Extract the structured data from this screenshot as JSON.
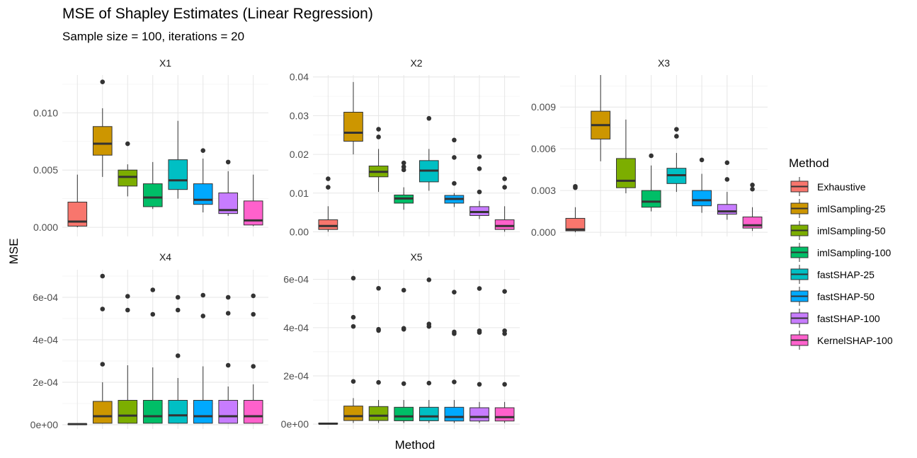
{
  "title": "MSE of Shapley Estimates (Linear Regression)",
  "subtitle": "Sample size = 100, iterations = 20",
  "xlabel": "Method",
  "ylabel": "MSE",
  "legend": {
    "title": "Method",
    "items": [
      {
        "label": "Exhaustive",
        "color": "#F8766D"
      },
      {
        "label": "imlSampling-25",
        "color": "#CD9600"
      },
      {
        "label": "imlSampling-50",
        "color": "#7CAE00"
      },
      {
        "label": "imlSampling-100",
        "color": "#00BE67"
      },
      {
        "label": "fastSHAP-25",
        "color": "#00BFC4"
      },
      {
        "label": "fastSHAP-50",
        "color": "#00A9FF"
      },
      {
        "label": "fastSHAP-100",
        "color": "#C77CFF"
      },
      {
        "label": "KernelSHAP-100",
        "color": "#FF61CC"
      }
    ]
  },
  "chart_data": {
    "type": "boxplot",
    "legend_position": "right",
    "grid": true,
    "categories": [
      "Exhaustive",
      "imlSampling-25",
      "imlSampling-50",
      "imlSampling-100",
      "fastSHAP-25",
      "fastSHAP-50",
      "fastSHAP-100",
      "KernelSHAP-100"
    ],
    "panels": [
      {
        "name": "X1",
        "ylim": [
          -0.0008,
          0.0133
        ],
        "ticks": [
          0,
          0.005,
          0.01
        ],
        "tick_labels": [
          "0.000",
          "0.005",
          "0.010"
        ],
        "boxes": [
          {
            "min": 0.0,
            "q1": 0.0001,
            "median": 0.0005,
            "q3": 0.0022,
            "max": 0.0046,
            "outliers": []
          },
          {
            "min": 0.0044,
            "q1": 0.0063,
            "median": 0.0073,
            "q3": 0.0088,
            "max": 0.0104,
            "outliers": [
              0.0127
            ]
          },
          {
            "min": 0.0027,
            "q1": 0.0036,
            "median": 0.0044,
            "q3": 0.005,
            "max": 0.0055,
            "outliers": [
              0.0073
            ]
          },
          {
            "min": 0.0016,
            "q1": 0.0018,
            "median": 0.0026,
            "q3": 0.0038,
            "max": 0.0057,
            "outliers": []
          },
          {
            "min": 0.0025,
            "q1": 0.0033,
            "median": 0.0041,
            "q3": 0.0059,
            "max": 0.0093,
            "outliers": []
          },
          {
            "min": 0.0013,
            "q1": 0.002,
            "median": 0.0024,
            "q3": 0.0038,
            "max": 0.006,
            "outliers": [
              0.0067
            ]
          },
          {
            "min": 0.001,
            "q1": 0.0012,
            "median": 0.0015,
            "q3": 0.003,
            "max": 0.0049,
            "outliers": [
              0.0057
            ]
          },
          {
            "min": 0.0001,
            "q1": 0.0002,
            "median": 0.0006,
            "q3": 0.0023,
            "max": 0.0046,
            "outliers": []
          }
        ]
      },
      {
        "name": "X2",
        "ylim": [
          -0.0012,
          0.0405
        ],
        "ticks": [
          0,
          0.01,
          0.02,
          0.03,
          0.04
        ],
        "tick_labels": [
          "0.00",
          "0.01",
          "0.02",
          "0.03",
          "0.04"
        ],
        "boxes": [
          {
            "min": 0.0,
            "q1": 0.0006,
            "median": 0.0015,
            "q3": 0.0031,
            "max": 0.0066,
            "outliers": [
              0.0115,
              0.0137
            ]
          },
          {
            "min": 0.02,
            "q1": 0.0234,
            "median": 0.0256,
            "q3": 0.0309,
            "max": 0.0387,
            "outliers": []
          },
          {
            "min": 0.0103,
            "q1": 0.0142,
            "median": 0.0155,
            "q3": 0.017,
            "max": 0.0214,
            "outliers": [
              0.0245,
              0.0265
            ]
          },
          {
            "min": 0.0057,
            "q1": 0.0074,
            "median": 0.0086,
            "q3": 0.0095,
            "max": 0.0115,
            "outliers": [
              0.016,
              0.0168,
              0.0178
            ]
          },
          {
            "min": 0.0106,
            "q1": 0.0129,
            "median": 0.0158,
            "q3": 0.0184,
            "max": 0.0214,
            "outliers": [
              0.0293
            ]
          },
          {
            "min": 0.0064,
            "q1": 0.0074,
            "median": 0.0085,
            "q3": 0.0094,
            "max": 0.01,
            "outliers": [
              0.0125,
              0.0192,
              0.0237
            ]
          },
          {
            "min": 0.0033,
            "q1": 0.0042,
            "median": 0.0051,
            "q3": 0.0065,
            "max": 0.008,
            "outliers": [
              0.0103,
              0.0163,
              0.0194
            ]
          },
          {
            "min": 0.0,
            "q1": 0.0006,
            "median": 0.0015,
            "q3": 0.0031,
            "max": 0.0066,
            "outliers": [
              0.0115,
              0.0137
            ]
          }
        ]
      },
      {
        "name": "X3",
        "ylim": [
          -0.0003,
          0.0113
        ],
        "ticks": [
          0,
          0.003,
          0.006,
          0.009
        ],
        "tick_labels": [
          "0.000",
          "0.003",
          "0.006",
          "0.009"
        ],
        "boxes": [
          {
            "min": 0.0,
            "q1": 0.0001,
            "median": 0.0002,
            "q3": 0.001,
            "max": 0.0018,
            "outliers": [
              0.0032,
              0.0033
            ]
          },
          {
            "min": 0.0051,
            "q1": 0.0067,
            "median": 0.0077,
            "q3": 0.0087,
            "max": 0.0113,
            "outliers": []
          },
          {
            "min": 0.0028,
            "q1": 0.0032,
            "median": 0.0037,
            "q3": 0.0053,
            "max": 0.0081,
            "outliers": []
          },
          {
            "min": 0.0015,
            "q1": 0.0018,
            "median": 0.0022,
            "q3": 0.003,
            "max": 0.0048,
            "outliers": [
              0.0055
            ]
          },
          {
            "min": 0.0029,
            "q1": 0.0035,
            "median": 0.0041,
            "q3": 0.0046,
            "max": 0.0057,
            "outliers": [
              0.0069,
              0.0074
            ]
          },
          {
            "min": 0.0014,
            "q1": 0.0019,
            "median": 0.0023,
            "q3": 0.003,
            "max": 0.0042,
            "outliers": [
              0.0052
            ]
          },
          {
            "min": 0.0009,
            "q1": 0.0013,
            "median": 0.0015,
            "q3": 0.002,
            "max": 0.0029,
            "outliers": [
              0.0038,
              0.005
            ]
          },
          {
            "min": 0.0001,
            "q1": 0.0003,
            "median": 0.0005,
            "q3": 0.0011,
            "max": 0.0018,
            "outliers": [
              0.0031,
              0.0034
            ]
          }
        ]
      },
      {
        "name": "X4",
        "ylim": [
          -2e-05,
          0.00073
        ],
        "ticks": [
          0,
          0.0002,
          0.0004,
          0.0006
        ],
        "tick_labels": [
          "0e+00",
          "2e-04",
          "4e-04",
          "6e-04"
        ],
        "boxes": [
          {
            "min": 0.0,
            "q1": 2e-06,
            "median": 3e-06,
            "q3": 4e-06,
            "max": 5e-06,
            "outliers": []
          },
          {
            "min": 5e-06,
            "q1": 7e-06,
            "median": 4e-05,
            "q3": 0.00011,
            "max": 0.0002,
            "outliers": [
              0.000285,
              0.000545,
              0.0007
            ]
          },
          {
            "min": 5e-06,
            "q1": 7e-06,
            "median": 4.3e-05,
            "q3": 0.000115,
            "max": 0.00028,
            "outliers": [
              0.00054,
              0.000605
            ]
          },
          {
            "min": 5e-06,
            "q1": 7e-06,
            "median": 4e-05,
            "q3": 0.000115,
            "max": 0.00027,
            "outliers": [
              0.00052,
              0.000635
            ]
          },
          {
            "min": 5e-06,
            "q1": 7e-06,
            "median": 4.4e-05,
            "q3": 0.000115,
            "max": 0.00022,
            "outliers": [
              0.000325,
              0.00054,
              0.0006
            ]
          },
          {
            "min": 5e-06,
            "q1": 7e-06,
            "median": 4e-05,
            "q3": 0.000115,
            "max": 0.000275,
            "outliers": [
              0.000512,
              0.00061
            ]
          },
          {
            "min": 5e-06,
            "q1": 7e-06,
            "median": 4e-05,
            "q3": 0.000115,
            "max": 0.00018,
            "outliers": [
              0.00028,
              0.000525,
              0.0006
            ]
          },
          {
            "min": 5e-06,
            "q1": 7e-06,
            "median": 4e-05,
            "q3": 0.000115,
            "max": 0.00019,
            "outliers": [
              0.000275,
              0.00052,
              0.000607
            ]
          }
        ]
      },
      {
        "name": "X5",
        "ylim": [
          -2e-05,
          0.00064
        ],
        "ticks": [
          0,
          0.0002,
          0.0004,
          0.0006
        ],
        "tick_labels": [
          "0e+00",
          "2e-04",
          "4e-04",
          "6e-04"
        ],
        "boxes": [
          {
            "min": 0.0,
            "q1": 1e-06,
            "median": 2e-06,
            "q3": 4e-06,
            "max": 5e-06,
            "outliers": []
          },
          {
            "min": 5e-06,
            "q1": 1.5e-05,
            "median": 3.3e-05,
            "q3": 7.5e-05,
            "max": 0.000108,
            "outliers": [
              0.000177,
              0.000405,
              0.000443,
              0.000605
            ]
          },
          {
            "min": 5e-06,
            "q1": 1.5e-05,
            "median": 3.5e-05,
            "q3": 7.3e-05,
            "max": 0.0001,
            "outliers": [
              0.000173,
              0.000388,
              0.000393,
              0.000563
            ]
          },
          {
            "min": 5e-06,
            "q1": 1.4e-05,
            "median": 3.2e-05,
            "q3": 7e-05,
            "max": 0.0001,
            "outliers": [
              0.000168,
              0.000393,
              0.000397,
              0.000555
            ]
          },
          {
            "min": 5e-06,
            "q1": 1.4e-05,
            "median": 3.2e-05,
            "q3": 7e-05,
            "max": 0.0001,
            "outliers": [
              0.00017,
              0.000405,
              0.000415,
              0.000598
            ]
          },
          {
            "min": 5e-06,
            "q1": 1.3e-05,
            "median": 3e-05,
            "q3": 7e-05,
            "max": 0.0001,
            "outliers": [
              0.000175,
              0.000375,
              0.000382,
              0.000547
            ]
          },
          {
            "min": 5e-06,
            "q1": 1.3e-05,
            "median": 3e-05,
            "q3": 6.8e-05,
            "max": 9.2e-05,
            "outliers": [
              0.000165,
              0.00038,
              0.000387,
              0.000562
            ]
          },
          {
            "min": 5e-06,
            "q1": 1.3e-05,
            "median": 2.9e-05,
            "q3": 6.8e-05,
            "max": 9.2e-05,
            "outliers": [
              0.000165,
              0.000375,
              0.000387,
              0.00055
            ]
          }
        ]
      }
    ]
  }
}
